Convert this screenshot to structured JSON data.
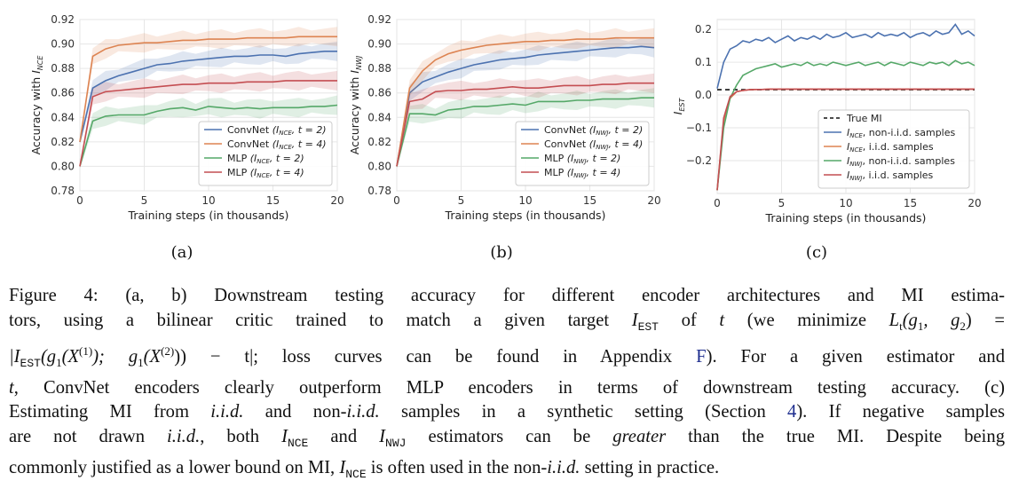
{
  "figure": {
    "panels": [
      {
        "label": "(a)",
        "ylabel_main": "Accuracy with ",
        "ylabel_sub": "I",
        "ylabel_subscript": "NCE",
        "xlabel": "Training steps (in thousands)"
      },
      {
        "label": "(b)",
        "ylabel_main": "Accuracy with ",
        "ylabel_sub": "I",
        "ylabel_subscript": "NWJ",
        "xlabel": "Training steps (in thousands)"
      },
      {
        "label": "(c)",
        "ylabel_main": "",
        "ylabel_sub": "I",
        "ylabel_subscript": "EST",
        "xlabel": "Training steps (in thousands)"
      }
    ]
  },
  "chart_data": [
    {
      "type": "line",
      "xlabel": "Training steps (in thousands)",
      "ylabel": "Accuracy with I_NCE",
      "xlim": [
        0,
        20
      ],
      "ylim": [
        0.78,
        0.92
      ],
      "xticks": [
        0,
        5,
        10,
        15,
        20
      ],
      "yticks": [
        "0.78",
        "0.80",
        "0.82",
        "0.84",
        "0.86",
        "0.88",
        "0.90",
        "0.92"
      ],
      "grid": true,
      "legend_position": "lower-right",
      "x": [
        0,
        1,
        2,
        3,
        4,
        5,
        6,
        7,
        8,
        9,
        10,
        11,
        12,
        13,
        14,
        15,
        16,
        17,
        18,
        19,
        20
      ],
      "series": [
        {
          "name": "ConvNet",
          "legend_label": "ConvNet (I_NCE, t = 2)",
          "legend_text": "ConvNet",
          "legend_math": "(INCE, t = 2)",
          "color": "#4c72b0",
          "values": [
            0.82,
            0.864,
            0.87,
            0.874,
            0.877,
            0.88,
            0.883,
            0.884,
            0.886,
            0.887,
            0.888,
            0.889,
            0.89,
            0.89,
            0.891,
            0.891,
            0.89,
            0.892,
            0.893,
            0.894,
            0.894
          ]
        },
        {
          "name": "ConvNet",
          "legend_label": "ConvNet (I_NCE, t = 4)",
          "legend_text": "ConvNet",
          "legend_math": "(INCE, t = 4)",
          "color": "#dd8452",
          "values": [
            0.82,
            0.89,
            0.896,
            0.899,
            0.9,
            0.901,
            0.901,
            0.902,
            0.903,
            0.903,
            0.904,
            0.904,
            0.904,
            0.905,
            0.905,
            0.905,
            0.905,
            0.906,
            0.906,
            0.906,
            0.906
          ]
        },
        {
          "name": "MLP",
          "legend_label": "MLP (I_NCE, t = 2)",
          "legend_text": "MLP",
          "legend_math": "(INCE, t = 2)",
          "color": "#55a868",
          "values": [
            0.8,
            0.837,
            0.841,
            0.842,
            0.842,
            0.842,
            0.845,
            0.847,
            0.848,
            0.846,
            0.849,
            0.848,
            0.847,
            0.848,
            0.847,
            0.848,
            0.848,
            0.848,
            0.849,
            0.849,
            0.85
          ]
        },
        {
          "name": "MLP",
          "legend_label": "MLP (I_NCE, t = 4)",
          "legend_text": "MLP",
          "legend_math": "(INCE, t = 4)",
          "color": "#c44e52",
          "values": [
            0.8,
            0.857,
            0.861,
            0.862,
            0.863,
            0.864,
            0.865,
            0.866,
            0.867,
            0.867,
            0.868,
            0.868,
            0.868,
            0.869,
            0.869,
            0.869,
            0.87,
            0.87,
            0.87,
            0.87,
            0.87
          ]
        }
      ]
    },
    {
      "type": "line",
      "xlabel": "Training steps (in thousands)",
      "ylabel": "Accuracy with I_NWJ",
      "xlim": [
        0,
        20
      ],
      "ylim": [
        0.78,
        0.92
      ],
      "xticks": [
        0,
        5,
        10,
        15,
        20
      ],
      "yticks": [
        "0.78",
        "0.80",
        "0.82",
        "0.84",
        "0.86",
        "0.88",
        "0.90",
        "0.92"
      ],
      "grid": true,
      "legend_position": "lower-right",
      "x": [
        0,
        1,
        2,
        3,
        4,
        5,
        6,
        7,
        8,
        9,
        10,
        11,
        12,
        13,
        14,
        15,
        16,
        17,
        18,
        19,
        20
      ],
      "series": [
        {
          "name": "ConvNet",
          "legend_label": "ConvNet (I_NWJ, t = 2)",
          "legend_text": "ConvNet",
          "legend_math": "(INWJ, t = 2)",
          "color": "#4c72b0",
          "values": [
            0.8,
            0.86,
            0.869,
            0.873,
            0.877,
            0.88,
            0.883,
            0.885,
            0.887,
            0.888,
            0.889,
            0.891,
            0.892,
            0.893,
            0.894,
            0.895,
            0.896,
            0.897,
            0.897,
            0.898,
            0.897
          ]
        },
        {
          "name": "ConvNet",
          "legend_label": "ConvNet (I_NWJ, t = 4)",
          "legend_text": "ConvNet",
          "legend_math": "(INWJ, t = 4)",
          "color": "#dd8452",
          "values": [
            0.8,
            0.864,
            0.878,
            0.887,
            0.892,
            0.895,
            0.897,
            0.899,
            0.9,
            0.901,
            0.902,
            0.902,
            0.903,
            0.903,
            0.904,
            0.904,
            0.904,
            0.905,
            0.905,
            0.905,
            0.905
          ]
        },
        {
          "name": "MLP",
          "legend_label": "MLP (I_NWJ, t = 2)",
          "legend_text": "MLP",
          "legend_math": "(INWJ, t = 2)",
          "color": "#55a868",
          "values": [
            0.8,
            0.843,
            0.843,
            0.842,
            0.846,
            0.847,
            0.849,
            0.849,
            0.85,
            0.851,
            0.85,
            0.853,
            0.853,
            0.853,
            0.854,
            0.854,
            0.855,
            0.855,
            0.855,
            0.856,
            0.856
          ]
        },
        {
          "name": "MLP",
          "legend_label": "MLP (I_NWJ, t = 4)",
          "legend_text": "MLP",
          "legend_math": "(INWJ, t = 4)",
          "color": "#c44e52",
          "values": [
            0.8,
            0.853,
            0.855,
            0.861,
            0.862,
            0.862,
            0.863,
            0.863,
            0.864,
            0.865,
            0.864,
            0.864,
            0.865,
            0.866,
            0.866,
            0.866,
            0.867,
            0.867,
            0.868,
            0.868,
            0.868
          ]
        }
      ]
    },
    {
      "type": "line",
      "xlabel": "Training steps (in thousands)",
      "ylabel": "I_EST",
      "xlim": [
        0,
        20
      ],
      "ylim": [
        -0.3,
        0.23
      ],
      "xticks": [
        0,
        5,
        10,
        15,
        20
      ],
      "yticks": [
        "−0.2",
        "−0.1",
        "0.0",
        "0.1",
        "0.2"
      ],
      "ytick_values": [
        -0.2,
        -0.1,
        0.0,
        0.1,
        0.2
      ],
      "grid": true,
      "legend_position": "lower-right",
      "x": [
        0,
        0.5,
        1,
        1.5,
        2,
        2.5,
        3,
        3.5,
        4,
        4.5,
        5,
        5.5,
        6,
        6.5,
        7,
        7.5,
        8,
        8.5,
        9,
        9.5,
        10,
        10.5,
        11,
        11.5,
        12,
        12.5,
        13,
        13.5,
        14,
        14.5,
        15,
        15.5,
        16,
        16.5,
        17,
        17.5,
        18,
        18.5,
        19,
        19.5,
        20
      ],
      "series": [
        {
          "name": "True MI",
          "legend_label": "True MI",
          "legend_text": "True MI",
          "legend_math": "",
          "color": "#111111",
          "dashed": true,
          "values": [
            0.016,
            0.016,
            0.016,
            0.016,
            0.016,
            0.016,
            0.016,
            0.016,
            0.016,
            0.016,
            0.016,
            0.016,
            0.016,
            0.016,
            0.016,
            0.016,
            0.016,
            0.016,
            0.016,
            0.016,
            0.016,
            0.016,
            0.016,
            0.016,
            0.016,
            0.016,
            0.016,
            0.016,
            0.016,
            0.016,
            0.016,
            0.016,
            0.016,
            0.016,
            0.016,
            0.016,
            0.016,
            0.016,
            0.016,
            0.016,
            0.016
          ]
        },
        {
          "name": "I_NCE, non-i.i.d. samples",
          "legend_label": "I_NCE, non-i.i.d. samples",
          "legend_text": ", non-i.i.d. samples",
          "legend_math": "INCE",
          "color": "#4c72b0",
          "values": [
            0.02,
            0.1,
            0.14,
            0.15,
            0.165,
            0.16,
            0.17,
            0.165,
            0.175,
            0.16,
            0.17,
            0.18,
            0.165,
            0.175,
            0.17,
            0.18,
            0.17,
            0.185,
            0.175,
            0.18,
            0.19,
            0.175,
            0.18,
            0.185,
            0.175,
            0.19,
            0.18,
            0.185,
            0.18,
            0.19,
            0.175,
            0.185,
            0.19,
            0.18,
            0.195,
            0.185,
            0.19,
            0.215,
            0.185,
            0.195,
            0.18
          ]
        },
        {
          "name": "I_NCE, i.i.d. samples",
          "legend_label": "I_NCE, i.i.d. samples",
          "legend_text": ", i.i.d. samples",
          "legend_math": "INCE",
          "color": "#dd8452",
          "values": [
            -0.29,
            -0.08,
            -0.01,
            0.01,
            0.014,
            0.016,
            0.017,
            0.017,
            0.018,
            0.018,
            0.018,
            0.018,
            0.018,
            0.018,
            0.018,
            0.018,
            0.018,
            0.018,
            0.018,
            0.018,
            0.018,
            0.018,
            0.018,
            0.018,
            0.018,
            0.018,
            0.018,
            0.018,
            0.018,
            0.018,
            0.018,
            0.018,
            0.018,
            0.018,
            0.018,
            0.018,
            0.018,
            0.018,
            0.018,
            0.018,
            0.018
          ]
        },
        {
          "name": "I_NWJ, non-i.i.d. samples",
          "legend_label": "I_NWJ, non-i.i.d. samples",
          "legend_text": ", non-i.i.d. samples",
          "legend_math": "INWJ",
          "color": "#55a868",
          "values": [
            -0.29,
            -0.1,
            -0.01,
            0.03,
            0.06,
            0.07,
            0.08,
            0.085,
            0.09,
            0.095,
            0.085,
            0.09,
            0.095,
            0.09,
            0.1,
            0.09,
            0.095,
            0.09,
            0.1,
            0.095,
            0.09,
            0.095,
            0.1,
            0.09,
            0.095,
            0.1,
            0.09,
            0.1,
            0.095,
            0.09,
            0.1,
            0.095,
            0.09,
            0.1,
            0.095,
            0.1,
            0.09,
            0.105,
            0.095,
            0.1,
            0.09
          ]
        },
        {
          "name": "I_NWJ, i.i.d. samples",
          "legend_label": "I_NWJ, i.i.d. samples",
          "legend_text": ", i.i.d. samples",
          "legend_math": "INWJ",
          "color": "#c44e52",
          "values": [
            -0.29,
            -0.07,
            -0.005,
            0.01,
            0.014,
            0.016,
            0.017,
            0.017,
            0.018,
            0.018,
            0.018,
            0.018,
            0.018,
            0.018,
            0.018,
            0.018,
            0.018,
            0.018,
            0.018,
            0.018,
            0.018,
            0.018,
            0.018,
            0.018,
            0.018,
            0.018,
            0.018,
            0.018,
            0.018,
            0.018,
            0.018,
            0.018,
            0.018,
            0.018,
            0.018,
            0.018,
            0.018,
            0.018,
            0.018,
            0.018,
            0.018
          ]
        }
      ]
    }
  ],
  "caption": {
    "l1_a": "Figure 4: (a, b) Downstream testing accuracy for different encoder architectures and MI estima-",
    "l2_a": "tors, using a bilinear critic trained to match a given target ",
    "l2_b": "I",
    "l2_c": "EST",
    "l2_d": " of ",
    "l2_e": "t",
    "l2_f": " (we minimize ",
    "l2_g": "L",
    "l2_h": "t",
    "l2_i": "(g",
    "l2_j": "1",
    "l2_k": ", g",
    "l2_l": "2",
    "l2_m": ") =",
    "l3_a": "|I",
    "l3_b": "EST",
    "l3_c": "(g",
    "l3_d": "1",
    "l3_e": "(X",
    "l3_f": "(1)",
    "l3_g": "); g",
    "l3_h": "1",
    "l3_i": "(X",
    "l3_j": "(2)",
    "l3_k": ")) − t|; loss curves can be found in Appendix ",
    "l3_l": "F",
    "l3_m": "). For a given estimator and",
    "l4_a": "t",
    "l4_b": ", ConvNet encoders clearly outperform MLP encoders in terms of downstream testing accuracy. (c)",
    "l5_a": "Estimating MI from ",
    "l5_b": "i.i.d.",
    "l5_c": " and non-",
    "l5_d": "i.i.d.",
    "l5_e": " samples in a synthetic setting (Section ",
    "l5_f": "4",
    "l5_g": "). If negative samples",
    "l6_a": "are not drawn ",
    "l6_b": "i.i.d.",
    "l6_c": ", both ",
    "l6_d": "I",
    "l6_e": "NCE",
    "l6_f": " and ",
    "l6_g": "I",
    "l6_h": "NWJ",
    "l6_i": " estimators can be ",
    "l6_j": "greater",
    "l6_k": " than the true MI. Despite being",
    "l7_a": "commonly justified as a lower bound on MI, ",
    "l7_b": "I",
    "l7_c": "NCE",
    "l7_d": " is often used in the non-",
    "l7_e": "i.i.d.",
    "l7_f": " setting in practice."
  }
}
